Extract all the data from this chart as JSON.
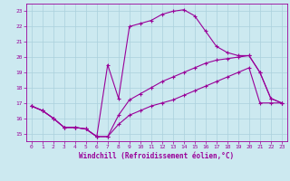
{
  "xlabel": "Windchill (Refroidissement éolien,°C)",
  "background_color": "#cce9f0",
  "grid_color": "#aad0dc",
  "line_color": "#990099",
  "xlim": [
    -0.5,
    23.5
  ],
  "ylim": [
    14.5,
    23.5
  ],
  "yticks": [
    15,
    16,
    17,
    18,
    19,
    20,
    21,
    22,
    23
  ],
  "xticks": [
    0,
    1,
    2,
    3,
    4,
    5,
    6,
    7,
    8,
    9,
    10,
    11,
    12,
    13,
    14,
    15,
    16,
    17,
    18,
    19,
    20,
    21,
    22,
    23
  ],
  "series1_x": [
    0,
    1,
    2,
    3,
    4,
    5,
    6,
    7,
    8,
    9,
    10,
    11,
    12,
    13,
    14,
    15,
    16,
    17,
    18,
    19,
    20,
    21,
    22,
    23
  ],
  "series1_y": [
    16.8,
    16.5,
    16.0,
    15.4,
    15.4,
    15.3,
    14.8,
    14.8,
    15.6,
    16.2,
    16.5,
    16.8,
    17.0,
    17.2,
    17.5,
    17.8,
    18.1,
    18.4,
    18.7,
    19.0,
    19.3,
    17.0,
    17.0,
    17.0
  ],
  "series2_x": [
    0,
    1,
    2,
    3,
    4,
    5,
    6,
    7,
    8,
    9,
    10,
    11,
    12,
    13,
    14,
    15,
    16,
    17,
    18,
    19,
    20,
    21,
    22,
    23
  ],
  "series2_y": [
    16.8,
    16.5,
    16.0,
    15.4,
    15.4,
    15.3,
    14.8,
    19.5,
    17.3,
    22.0,
    22.2,
    22.4,
    22.8,
    23.0,
    23.1,
    22.7,
    21.7,
    20.7,
    20.3,
    20.1,
    20.1,
    19.0,
    17.3,
    17.0
  ],
  "series3_x": [
    0,
    1,
    2,
    3,
    4,
    5,
    6,
    7,
    8,
    9,
    10,
    11,
    12,
    13,
    14,
    15,
    16,
    17,
    18,
    19,
    20,
    21,
    22,
    23
  ],
  "series3_y": [
    16.8,
    16.5,
    16.0,
    15.4,
    15.4,
    15.3,
    14.8,
    14.8,
    16.2,
    17.2,
    17.6,
    18.0,
    18.4,
    18.7,
    19.0,
    19.3,
    19.6,
    19.8,
    19.9,
    20.0,
    20.1,
    19.0,
    17.3,
    17.0
  ]
}
